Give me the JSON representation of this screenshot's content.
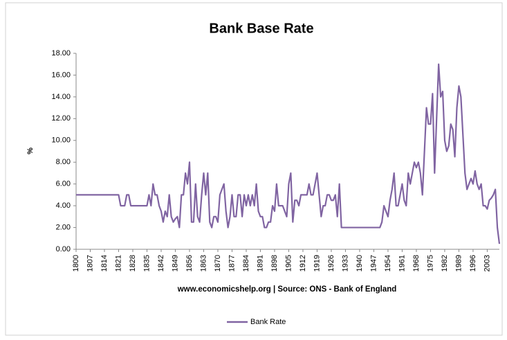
{
  "chart_data": {
    "type": "line",
    "title": "Bank Base Rate",
    "ylabel": "%",
    "xlabel": "www.economicshelp.org | Source: ONS - Bank of England",
    "x": [
      1800,
      1821,
      1822,
      1823,
      1824,
      1825,
      1826,
      1827,
      1828,
      1829,
      1830,
      1831,
      1832,
      1833,
      1834,
      1835,
      1836,
      1837,
      1838,
      1839,
      1840,
      1841,
      1842,
      1843,
      1844,
      1845,
      1846,
      1847,
      1848,
      1849,
      1850,
      1851,
      1852,
      1853,
      1854,
      1855,
      1856,
      1857,
      1858,
      1859,
      1860,
      1861,
      1862,
      1863,
      1864,
      1865,
      1866,
      1867,
      1868,
      1869,
      1870,
      1871,
      1872,
      1873,
      1874,
      1875,
      1876,
      1877,
      1878,
      1879,
      1880,
      1881,
      1882,
      1883,
      1884,
      1885,
      1886,
      1887,
      1888,
      1889,
      1890,
      1891,
      1892,
      1893,
      1894,
      1895,
      1896,
      1897,
      1898,
      1899,
      1900,
      1901,
      1902,
      1903,
      1904,
      1905,
      1906,
      1907,
      1908,
      1909,
      1910,
      1911,
      1912,
      1913,
      1914,
      1915,
      1916,
      1917,
      1918,
      1919,
      1920,
      1921,
      1922,
      1923,
      1924,
      1925,
      1926,
      1927,
      1928,
      1929,
      1930,
      1931,
      1932,
      1950,
      1951,
      1952,
      1953,
      1954,
      1955,
      1956,
      1957,
      1958,
      1959,
      1960,
      1961,
      1962,
      1963,
      1964,
      1965,
      1966,
      1967,
      1968,
      1969,
      1970,
      1971,
      1972,
      1973,
      1974,
      1975,
      1976,
      1977,
      1978,
      1979,
      1980,
      1981,
      1982,
      1983,
      1984,
      1985,
      1986,
      1987,
      1988,
      1989,
      1990,
      1991,
      1992,
      1993,
      1994,
      1995,
      1996,
      1997,
      1998,
      1999,
      2000,
      2001,
      2002,
      2003,
      2004,
      2005,
      2006,
      2007,
      2008,
      2009
    ],
    "series": [
      {
        "name": "Bank Rate",
        "color": "#8064a2",
        "values": [
          5,
          5,
          4,
          4,
          4,
          5,
          5,
          4,
          4,
          4,
          4,
          4,
          4,
          4,
          4,
          4,
          5,
          4,
          6,
          5,
          5,
          4,
          3.5,
          2.5,
          3.5,
          3,
          5,
          3,
          2.5,
          2.8,
          3,
          2,
          5,
          5,
          7,
          6,
          8,
          2.5,
          2.5,
          6,
          3,
          2.5,
          5,
          7,
          5,
          7,
          2.5,
          2,
          3,
          3,
          2.5,
          5,
          5.5,
          6,
          3.5,
          2,
          3,
          5,
          3,
          3,
          5,
          5,
          3,
          5,
          4,
          5,
          4,
          5,
          4,
          6,
          3.5,
          3,
          3,
          2,
          2,
          2.5,
          2.5,
          4,
          3.5,
          6,
          4,
          4,
          4,
          3.5,
          3,
          6,
          7,
          2.5,
          4.5,
          4.5,
          4,
          5,
          5,
          5,
          5,
          6,
          5,
          5,
          6,
          7,
          5,
          3,
          4,
          4,
          5,
          5,
          4.5,
          4.5,
          5,
          3,
          6,
          2,
          2,
          2,
          2.5,
          4,
          3.5,
          3,
          4.5,
          5.5,
          7,
          4,
          4,
          5,
          6,
          4.5,
          4,
          7,
          6,
          7,
          8,
          7.5,
          8,
          7,
          5,
          9,
          13,
          11.5,
          11.5,
          14.3,
          7,
          12,
          17,
          14,
          14.5,
          10,
          9,
          9.5,
          11.5,
          11,
          8.5,
          13,
          15,
          14,
          10.5,
          7,
          5.5,
          6,
          6.5,
          6,
          7.2,
          6,
          5.5,
          6,
          4,
          4,
          3.7,
          4.5,
          4.7,
          5,
          5.5,
          2,
          0.5
        ]
      }
    ],
    "xlim": [
      1800,
      2009
    ],
    "xticks": [
      1800,
      1807,
      1814,
      1821,
      1828,
      1835,
      1842,
      1849,
      1856,
      1863,
      1870,
      1877,
      1884,
      1891,
      1898,
      1905,
      1912,
      1919,
      1926,
      1933,
      1940,
      1947,
      1954,
      1961,
      1968,
      1975,
      1982,
      1989,
      1996,
      2003
    ],
    "ylim": [
      0,
      18
    ],
    "yticks": [
      {
        "value": 0,
        "label": "0.00"
      },
      {
        "value": 2,
        "label": "2.00"
      },
      {
        "value": 4,
        "label": "4.00"
      },
      {
        "value": 6,
        "label": "6.00"
      },
      {
        "value": 8,
        "label": "8.00"
      },
      {
        "value": 10,
        "label": "10.00"
      },
      {
        "value": 12,
        "label": "12.00"
      },
      {
        "value": 14,
        "label": "14.00"
      },
      {
        "value": 16,
        "label": "16.00"
      },
      {
        "value": 18,
        "label": "18.00"
      }
    ],
    "legend": "bottom"
  }
}
